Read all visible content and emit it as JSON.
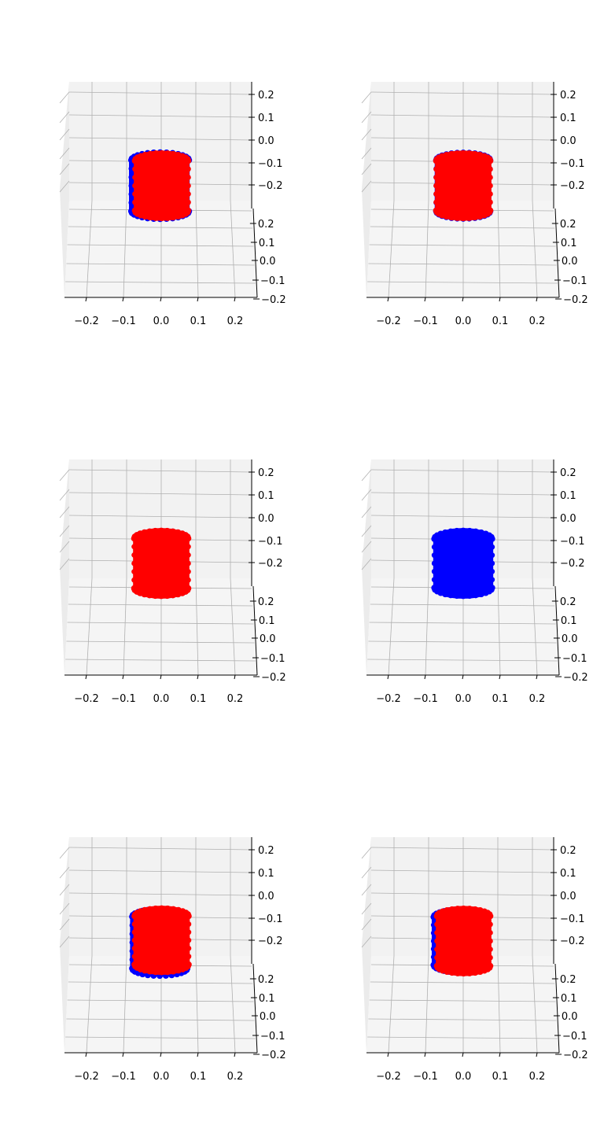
{
  "chart_data": [
    {
      "type": "scatter",
      "subtype": "3d-scatter",
      "title": "",
      "xlabel": "",
      "ylabel": "",
      "zlabel": "",
      "x_ticks": [
        "−0.2",
        "−0.1",
        "0.0",
        "0.1",
        "0.2"
      ],
      "y_ticks": [
        "0.2",
        "0.1",
        "0.0",
        "−0.1",
        "−0.2"
      ],
      "z_ticks": [
        "0.2",
        "0.1",
        "0.0",
        "−0.1",
        "−0.2"
      ],
      "xlim": [
        -0.25,
        0.25
      ],
      "ylim": [
        -0.25,
        0.25
      ],
      "zlim": [
        -0.25,
        0.25
      ],
      "grid": true,
      "series": [
        {
          "color": "#0000ff",
          "shape": "cylinder",
          "center": [
            -0.003,
            0.0,
            0.0
          ],
          "radius": 0.075,
          "height": 0.18,
          "spill": 0.006
        },
        {
          "color": "#ff0000",
          "shape": "cylinder",
          "center": [
            0.001,
            0.0,
            0.0
          ],
          "radius": 0.072,
          "height": 0.175
        }
      ],
      "front_series": 1
    },
    {
      "type": "scatter",
      "subtype": "3d-scatter",
      "title": "",
      "xlabel": "",
      "ylabel": "",
      "zlabel": "",
      "x_ticks": [
        "−0.2",
        "−0.1",
        "0.0",
        "0.1",
        "0.2"
      ],
      "y_ticks": [
        "0.2",
        "0.1",
        "0.0",
        "−0.1",
        "−0.2"
      ],
      "z_ticks": [
        "0.2",
        "0.1",
        "0.0",
        "−0.1",
        "−0.2"
      ],
      "xlim": [
        -0.25,
        0.25
      ],
      "ylim": [
        -0.25,
        0.25
      ],
      "zlim": [
        -0.25,
        0.25
      ],
      "grid": true,
      "series": [
        {
          "color": "#0000ff",
          "shape": "cylinder",
          "center": [
            0.0,
            0.0,
            0.0
          ],
          "radius": 0.072,
          "height": 0.178,
          "spill": 0.002
        },
        {
          "color": "#ff0000",
          "shape": "cylinder",
          "center": [
            0.0,
            0.0,
            0.0
          ],
          "radius": 0.073,
          "height": 0.175
        }
      ],
      "front_series": 1
    },
    {
      "type": "scatter",
      "subtype": "3d-scatter",
      "title": "",
      "xlabel": "",
      "ylabel": "",
      "zlabel": "",
      "x_ticks": [
        "−0.2",
        "−0.1",
        "0.0",
        "0.1",
        "0.2"
      ],
      "y_ticks": [
        "0.2",
        "0.1",
        "0.0",
        "−0.1",
        "−0.2"
      ],
      "z_ticks": [
        "0.2",
        "0.1",
        "0.0",
        "−0.1",
        "−0.2"
      ],
      "xlim": [
        -0.25,
        0.25
      ],
      "ylim": [
        -0.25,
        0.25
      ],
      "zlim": [
        -0.25,
        0.25
      ],
      "grid": true,
      "series": [
        {
          "color": "#0000ff",
          "shape": "cylinder",
          "center": [
            0.0,
            0.0,
            0.0
          ],
          "radius": 0.071,
          "height": 0.175,
          "spill": 0.0
        },
        {
          "color": "#ff0000",
          "shape": "cylinder",
          "center": [
            0.0,
            0.0,
            0.0
          ],
          "radius": 0.073,
          "height": 0.176
        }
      ],
      "front_series": 1
    },
    {
      "type": "scatter",
      "subtype": "3d-scatter",
      "title": "",
      "xlabel": "",
      "ylabel": "",
      "zlabel": "",
      "x_ticks": [
        "−0.2",
        "−0.1",
        "0.0",
        "0.1",
        "0.2"
      ],
      "y_ticks": [
        "0.2",
        "0.1",
        "0.0",
        "−0.1",
        "−0.2"
      ],
      "z_ticks": [
        "0.2",
        "0.1",
        "0.0",
        "−0.1",
        "−0.2"
      ],
      "xlim": [
        -0.25,
        0.25
      ],
      "ylim": [
        -0.25,
        0.25
      ],
      "zlim": [
        -0.25,
        0.25
      ],
      "grid": true,
      "series": [
        {
          "color": "#ff0000",
          "shape": "cylinder",
          "center": [
            0.0,
            0.0,
            0.0
          ],
          "radius": 0.07,
          "height": 0.17,
          "visible": "top-only"
        },
        {
          "color": "#0000ff",
          "shape": "cylinder",
          "center": [
            0.0,
            0.0,
            0.0
          ],
          "radius": 0.078,
          "height": 0.176
        }
      ],
      "front_series": 1
    },
    {
      "type": "scatter",
      "subtype": "3d-scatter",
      "title": "",
      "xlabel": "",
      "ylabel": "",
      "zlabel": "",
      "x_ticks": [
        "−0.2",
        "−0.1",
        "0.0",
        "0.1",
        "0.2"
      ],
      "y_ticks": [
        "0.2",
        "0.1",
        "0.0",
        "−0.1",
        "−0.2"
      ],
      "z_ticks": [
        "0.2",
        "0.1",
        "0.0",
        "−0.1",
        "−0.2"
      ],
      "xlim": [
        -0.25,
        0.25
      ],
      "ylim": [
        -0.25,
        0.25
      ],
      "zlim": [
        -0.25,
        0.25
      ],
      "grid": true,
      "series": [
        {
          "color": "#0000ff",
          "shape": "cylinder",
          "center": [
            -0.004,
            0.0,
            0.004
          ],
          "radius": 0.072,
          "height": 0.18,
          "spill": 0.005
        },
        {
          "color": "#ff0000",
          "shape": "cylinder",
          "center": [
            0.001,
            0.0,
            -0.002
          ],
          "radius": 0.073,
          "height": 0.172
        }
      ],
      "front_series": 1
    },
    {
      "type": "scatter",
      "subtype": "3d-scatter",
      "title": "",
      "xlabel": "",
      "ylabel": "",
      "zlabel": "",
      "x_ticks": [
        "−0.2",
        "−0.1",
        "0.0",
        "0.1",
        "0.2"
      ],
      "y_ticks": [
        "0.2",
        "0.1",
        "0.0",
        "−0.1",
        "−0.2"
      ],
      "z_ticks": [
        "0.2",
        "0.1",
        "0.0",
        "−0.1",
        "−0.2"
      ],
      "xlim": [
        -0.25,
        0.25
      ],
      "ylim": [
        -0.25,
        0.25
      ],
      "zlim": [
        -0.25,
        0.25
      ],
      "grid": true,
      "series": [
        {
          "color": "#0000ff",
          "shape": "cylinder",
          "center": [
            -0.006,
            0.0,
            0.0
          ],
          "radius": 0.072,
          "height": 0.17,
          "spill": 0.004
        },
        {
          "color": "#ff0000",
          "shape": "cylinder",
          "center": [
            0.001,
            0.0,
            0.0
          ],
          "radius": 0.072,
          "height": 0.175
        }
      ],
      "front_series": 1
    }
  ]
}
